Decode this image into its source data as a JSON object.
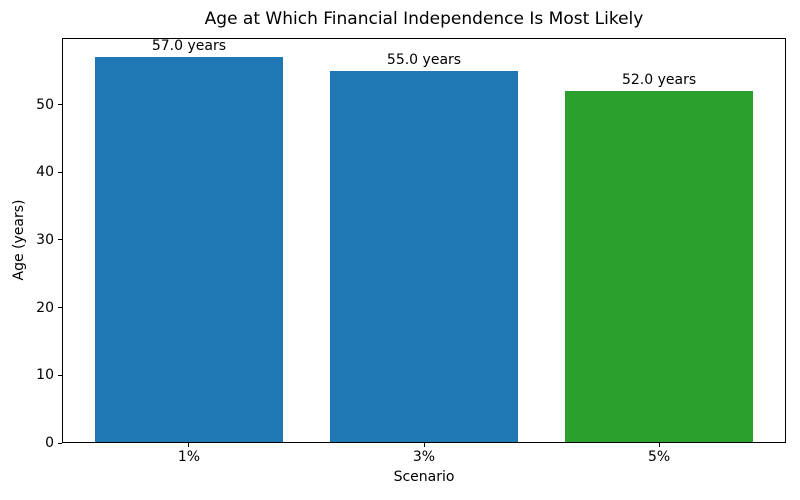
{
  "chart_data": {
    "type": "bar",
    "title": "Age at Which Financial Independence Is Most Likely",
    "xlabel": "Scenario",
    "ylabel": "Age (years)",
    "categories": [
      "1%",
      "3%",
      "5%"
    ],
    "values": [
      57.0,
      55.0,
      52.0
    ],
    "bar_labels": [
      "57.0 years",
      "55.0 years",
      "52.0 years"
    ],
    "bar_colors": [
      "#1f77b4",
      "#1f77b4",
      "#2ca02c"
    ],
    "ylim": [
      0,
      59.85
    ],
    "yticks": [
      0,
      10,
      20,
      30,
      40,
      50
    ],
    "bar_width_fraction": 0.8,
    "grid": false,
    "legend": null,
    "background_color": "#ffffff",
    "text_color": "#000000"
  }
}
